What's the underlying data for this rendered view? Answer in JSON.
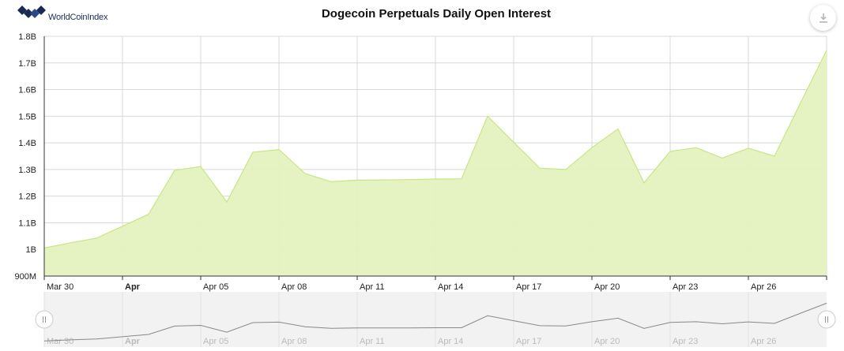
{
  "header": {
    "brand": "WorldCoinIndex",
    "title": "Dogecoin Perpetuals Daily Open Interest",
    "export_icon": "download-icon"
  },
  "colors": {
    "area_fill": "#e4f2bf",
    "area_line": "#c9e584",
    "navigator_line": "#888888",
    "navigator_bg": "#f2f2f2",
    "grid": "#d8d8d8",
    "brand": "#1a2a55"
  },
  "chart_data": {
    "type": "area",
    "title": "Dogecoin Perpetuals Daily Open Interest",
    "xlabel": "",
    "ylabel": "",
    "ylim": [
      900000000,
      1800000000
    ],
    "y_ticks": [
      {
        "value": 900000000,
        "label": "900M"
      },
      {
        "value": 1000000000,
        "label": "1B"
      },
      {
        "value": 1100000000,
        "label": "1.1B"
      },
      {
        "value": 1200000000,
        "label": "1.2B"
      },
      {
        "value": 1300000000,
        "label": "1.3B"
      },
      {
        "value": 1400000000,
        "label": "1.4B"
      },
      {
        "value": 1500000000,
        "label": "1.5B"
      },
      {
        "value": 1600000000,
        "label": "1.6B"
      },
      {
        "value": 1700000000,
        "label": "1.7B"
      },
      {
        "value": 1800000000,
        "label": "1.8B"
      }
    ],
    "x_ticks": [
      {
        "date": "Mar 30",
        "label": "Mar 30",
        "bold": false
      },
      {
        "date": "Apr 02",
        "label": "Apr",
        "bold": true
      },
      {
        "date": "Apr 05",
        "label": "Apr 05",
        "bold": false
      },
      {
        "date": "Apr 08",
        "label": "Apr 08",
        "bold": false
      },
      {
        "date": "Apr 11",
        "label": "Apr 11",
        "bold": false
      },
      {
        "date": "Apr 14",
        "label": "Apr 14",
        "bold": false
      },
      {
        "date": "Apr 17",
        "label": "Apr 17",
        "bold": false
      },
      {
        "date": "Apr 20",
        "label": "Apr 20",
        "bold": false
      },
      {
        "date": "Apr 23",
        "label": "Apr 23",
        "bold": false
      },
      {
        "date": "Apr 26",
        "label": "Apr 26",
        "bold": false
      }
    ],
    "x": [
      "Mar 30",
      "Mar 31",
      "Apr 01",
      "Apr 02",
      "Apr 03",
      "Apr 04",
      "Apr 05",
      "Apr 06",
      "Apr 07",
      "Apr 08",
      "Apr 09",
      "Apr 10",
      "Apr 11",
      "Apr 12",
      "Apr 13",
      "Apr 14",
      "Apr 15",
      "Apr 16",
      "Apr 17",
      "Apr 18",
      "Apr 19",
      "Apr 20",
      "Apr 21",
      "Apr 22",
      "Apr 23",
      "Apr 24",
      "Apr 25",
      "Apr 26",
      "Apr 27",
      "Apr 28",
      "Apr 29"
    ],
    "series": [
      {
        "values": [
          1005000000,
          1025000000,
          1042000000,
          1087000000,
          1132000000,
          1297000000,
          1311000000,
          1178000000,
          1365000000,
          1375000000,
          1285000000,
          1254000000,
          1260000000,
          1261000000,
          1262000000,
          1264000000,
          1265000000,
          1500000000,
          1402000000,
          1305000000,
          1300000000,
          1382000000,
          1452000000,
          1250000000,
          1368000000,
          1382000000,
          1343000000,
          1380000000,
          1350000000,
          1550000000,
          1748000000
        ]
      }
    ],
    "grid": true,
    "legend": "none"
  },
  "navigator": {
    "left_handle_icon": "drag-handle-icon",
    "right_handle_icon": "drag-handle-icon"
  }
}
